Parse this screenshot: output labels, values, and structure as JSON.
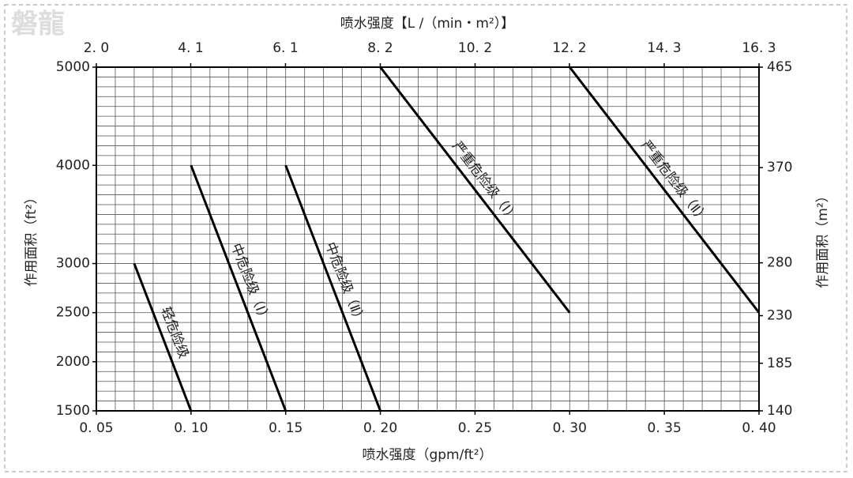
{
  "watermark": "磐龍",
  "chart_data": {
    "type": "line",
    "x_title": "喷水强度（gpm/ft²）",
    "x2_title": "喷水强度【L /（min・m²）】",
    "y_title": "作用面积（ft²）",
    "y2_title": "作用面积（m²）",
    "xlim": [
      0.05,
      0.4
    ],
    "xticks": [
      {
        "value": 0.05,
        "label": "0. 05"
      },
      {
        "value": 0.1,
        "label": "0. 10"
      },
      {
        "value": 0.15,
        "label": "0. 15"
      },
      {
        "value": 0.2,
        "label": "0. 20"
      },
      {
        "value": 0.25,
        "label": "0. 25"
      },
      {
        "value": 0.3,
        "label": "0. 30"
      },
      {
        "value": 0.35,
        "label": "0. 35"
      },
      {
        "value": 0.4,
        "label": "0. 40"
      }
    ],
    "x2lim": [
      2.04,
      16.3
    ],
    "x2ticks": [
      {
        "value": 2.04,
        "label": "2. 0"
      },
      {
        "value": 4.07,
        "label": "4. 1"
      },
      {
        "value": 6.11,
        "label": "6. 1"
      },
      {
        "value": 8.15,
        "label": "8. 2"
      },
      {
        "value": 10.19,
        "label": "10. 2"
      },
      {
        "value": 12.22,
        "label": "12. 2"
      },
      {
        "value": 14.26,
        "label": "14. 3"
      },
      {
        "value": 16.3,
        "label": "16. 3"
      }
    ],
    "ylim": [
      1500,
      5000
    ],
    "yticks": [
      1500,
      2000,
      2500,
      3000,
      4000,
      5000
    ],
    "y2lim": [
      140,
      465
    ],
    "y2ticks": [
      140,
      185,
      230,
      280,
      370,
      465
    ],
    "grid": true,
    "minor_grid": {
      "x": 0.01,
      "y": 100
    },
    "series": [
      {
        "name": "轻危险级",
        "color": "#000000",
        "x": [
          0.07,
          0.1
        ],
        "values": [
          3000,
          1500
        ]
      },
      {
        "name": "中危险级（Ⅰ）",
        "color": "#000000",
        "x": [
          0.1,
          0.15
        ],
        "values": [
          4000,
          1500
        ]
      },
      {
        "name": "中危险级（Ⅱ）",
        "color": "#000000",
        "x": [
          0.15,
          0.2
        ],
        "values": [
          4000,
          1500
        ]
      },
      {
        "name": "严重危险级（Ⅰ）",
        "color": "#000000",
        "x": [
          0.2,
          0.3
        ],
        "values": [
          5000,
          2500
        ]
      },
      {
        "name": "严重危险级（Ⅱ）",
        "color": "#000000",
        "x": [
          0.3,
          0.4
        ],
        "values": [
          5000,
          2500
        ]
      }
    ]
  }
}
